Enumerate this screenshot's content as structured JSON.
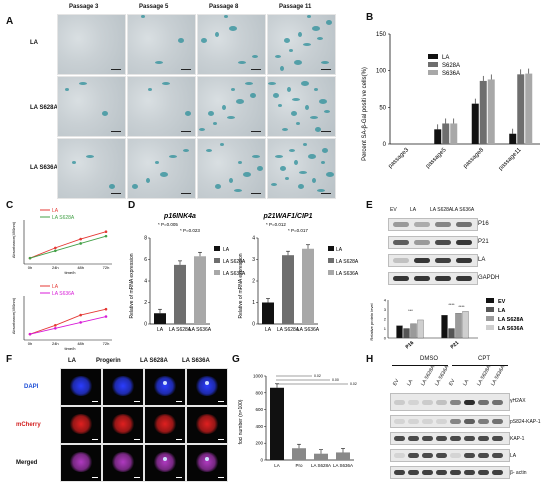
{
  "panels": {
    "A": {
      "letter": "A",
      "columns": [
        "Passage 3",
        "Passage 5",
        "Passage 8",
        "Passage 11"
      ],
      "rows": [
        "LA",
        "LA S628A",
        "LA S636A"
      ]
    },
    "B": {
      "letter": "B",
      "legend": [
        "LA",
        "S628A",
        "S636A"
      ]
    },
    "C": {
      "letter": "C",
      "legend_top": [
        "LA",
        "LA S628A"
      ],
      "legend_bottom": [
        "LA",
        "LA S636A"
      ]
    },
    "D": {
      "letter": "D",
      "title_left": "p16INK4a",
      "title_right": "p21WAF1/CIP1",
      "legend": [
        "LA",
        "LA S628A",
        "LA S636A"
      ],
      "p_left_1": "* P=0.005",
      "p_left_2": "* P=0.023",
      "p_right_1": "* P=0.012",
      "p_right_2": "* P=0.017"
    },
    "E": {
      "letter": "E",
      "lanes": [
        "EV",
        "LA",
        "LA S628A",
        "LA S636A"
      ],
      "rows": [
        "P16",
        "P21",
        "LA",
        "GAPDH"
      ],
      "legend": [
        "EV",
        "LA",
        "LA S628A",
        "LA S636A"
      ]
    },
    "F": {
      "letter": "F",
      "columns": [
        "LA",
        "Progerin",
        "LA S628A",
        "LA S636A"
      ],
      "rows": [
        "DAPI",
        "mCherry",
        "Merged"
      ]
    },
    "G": {
      "letter": "G",
      "sig": [
        "0.02",
        "0.00",
        "0.02"
      ]
    },
    "H": {
      "letter": "H",
      "groups": [
        "DMSO",
        "CPT"
      ],
      "lanes": [
        "EV",
        "LA",
        "LA S628A",
        "LA S636A",
        "EV",
        "LA",
        "LA S628A",
        "LA S636A"
      ],
      "rows": [
        "γH2AX",
        "pS824-KAP-1",
        "KAP-1",
        "LA",
        "β- actin"
      ]
    }
  },
  "chart_data": [
    {
      "panel": "B",
      "type": "bar",
      "ylabel": "Percent SA-β-Gal positi ve cells(%)",
      "categories": [
        "passage3",
        "passage5",
        "passage8",
        "passage11"
      ],
      "ylim": [
        0,
        150
      ],
      "yticks": [
        0,
        50,
        100,
        150
      ],
      "series": [
        {
          "name": "LA",
          "values": [
            0,
            20,
            55,
            14
          ],
          "color": "#111111"
        },
        {
          "name": "S628A",
          "values": [
            0,
            28,
            86,
            95
          ],
          "color": "#6e6e6e"
        },
        {
          "name": "S636A",
          "values": [
            0,
            28,
            88,
            96
          ],
          "color": "#a8a8a8"
        }
      ]
    },
    {
      "panel": "C-top",
      "type": "line",
      "ylabel": "Absorbance(490nm)",
      "xlabel": "time/h",
      "categories": [
        "0h",
        "24h",
        "48h",
        "72h"
      ],
      "ylim": [
        0,
        1.5
      ],
      "series": [
        {
          "name": "LA",
          "values": [
            0.2,
            0.55,
            0.85,
            1.1
          ],
          "color": "#e53935"
        },
        {
          "name": "LA S628A",
          "values": [
            0.2,
            0.45,
            0.7,
            0.95
          ],
          "color": "#43a047"
        }
      ]
    },
    {
      "panel": "C-bottom",
      "type": "line",
      "ylabel": "Absorbance(490nm)",
      "xlabel": "time/h",
      "categories": [
        "0h",
        "24h",
        "48h",
        "72h"
      ],
      "ylim": [
        0,
        1.5
      ],
      "series": [
        {
          "name": "LA",
          "values": [
            0.2,
            0.5,
            0.85,
            1.05
          ],
          "color": "#e53935"
        },
        {
          "name": "LA S636A",
          "values": [
            0.2,
            0.4,
            0.6,
            0.8
          ],
          "color": "#d81bd8"
        }
      ]
    },
    {
      "panel": "D-left",
      "type": "bar",
      "ylabel": "Relative of mRNA expression",
      "categories": [
        "LA",
        "LA S628A",
        "LA S636A"
      ],
      "values": [
        1.0,
        5.5,
        6.3
      ],
      "ylim": [
        0,
        8
      ],
      "yticks": [
        0,
        2,
        4,
        6,
        8
      ],
      "colors": [
        "#111111",
        "#6e6e6e",
        "#a8a8a8"
      ]
    },
    {
      "panel": "D-right",
      "type": "bar",
      "ylabel": "Relative of mRNA expression",
      "categories": [
        "LA",
        "LA S628A",
        "LA S636A"
      ],
      "values": [
        1.0,
        3.2,
        3.5
      ],
      "ylim": [
        0,
        4
      ],
      "yticks": [
        0,
        1,
        2,
        3,
        4
      ],
      "colors": [
        "#111111",
        "#6e6e6e",
        "#a8a8a8"
      ]
    },
    {
      "panel": "E-quant",
      "type": "bar",
      "ylabel": "Relative protein level",
      "categories": [
        "P16",
        "P21"
      ],
      "ylim": [
        0,
        4
      ],
      "yticks": [
        0,
        1,
        2,
        3,
        4
      ],
      "series": [
        {
          "name": "EV",
          "values": [
            1.3,
            2.4
          ],
          "color": "#111111"
        },
        {
          "name": "LA",
          "values": [
            1.0,
            1.0
          ],
          "color": "#555555"
        },
        {
          "name": "LA S628A",
          "values": [
            1.5,
            2.6
          ],
          "color": "#9a9a9a"
        },
        {
          "name": "LA S636A",
          "values": [
            1.9,
            2.8
          ],
          "color": "#cfcfcf"
        }
      ],
      "sig": [
        "***",
        "****",
        "****"
      ]
    },
    {
      "panel": "G",
      "type": "bar",
      "ylabel": "foci number (n=100)",
      "categories": [
        "LA",
        "Pro",
        "LA S628A",
        "LA S636A"
      ],
      "values": [
        860,
        140,
        75,
        90
      ],
      "ylim": [
        0,
        1000
      ],
      "yticks": [
        0,
        200,
        400,
        600,
        800,
        1000
      ],
      "colors": [
        "#111111",
        "#888888",
        "#888888",
        "#888888"
      ]
    }
  ]
}
